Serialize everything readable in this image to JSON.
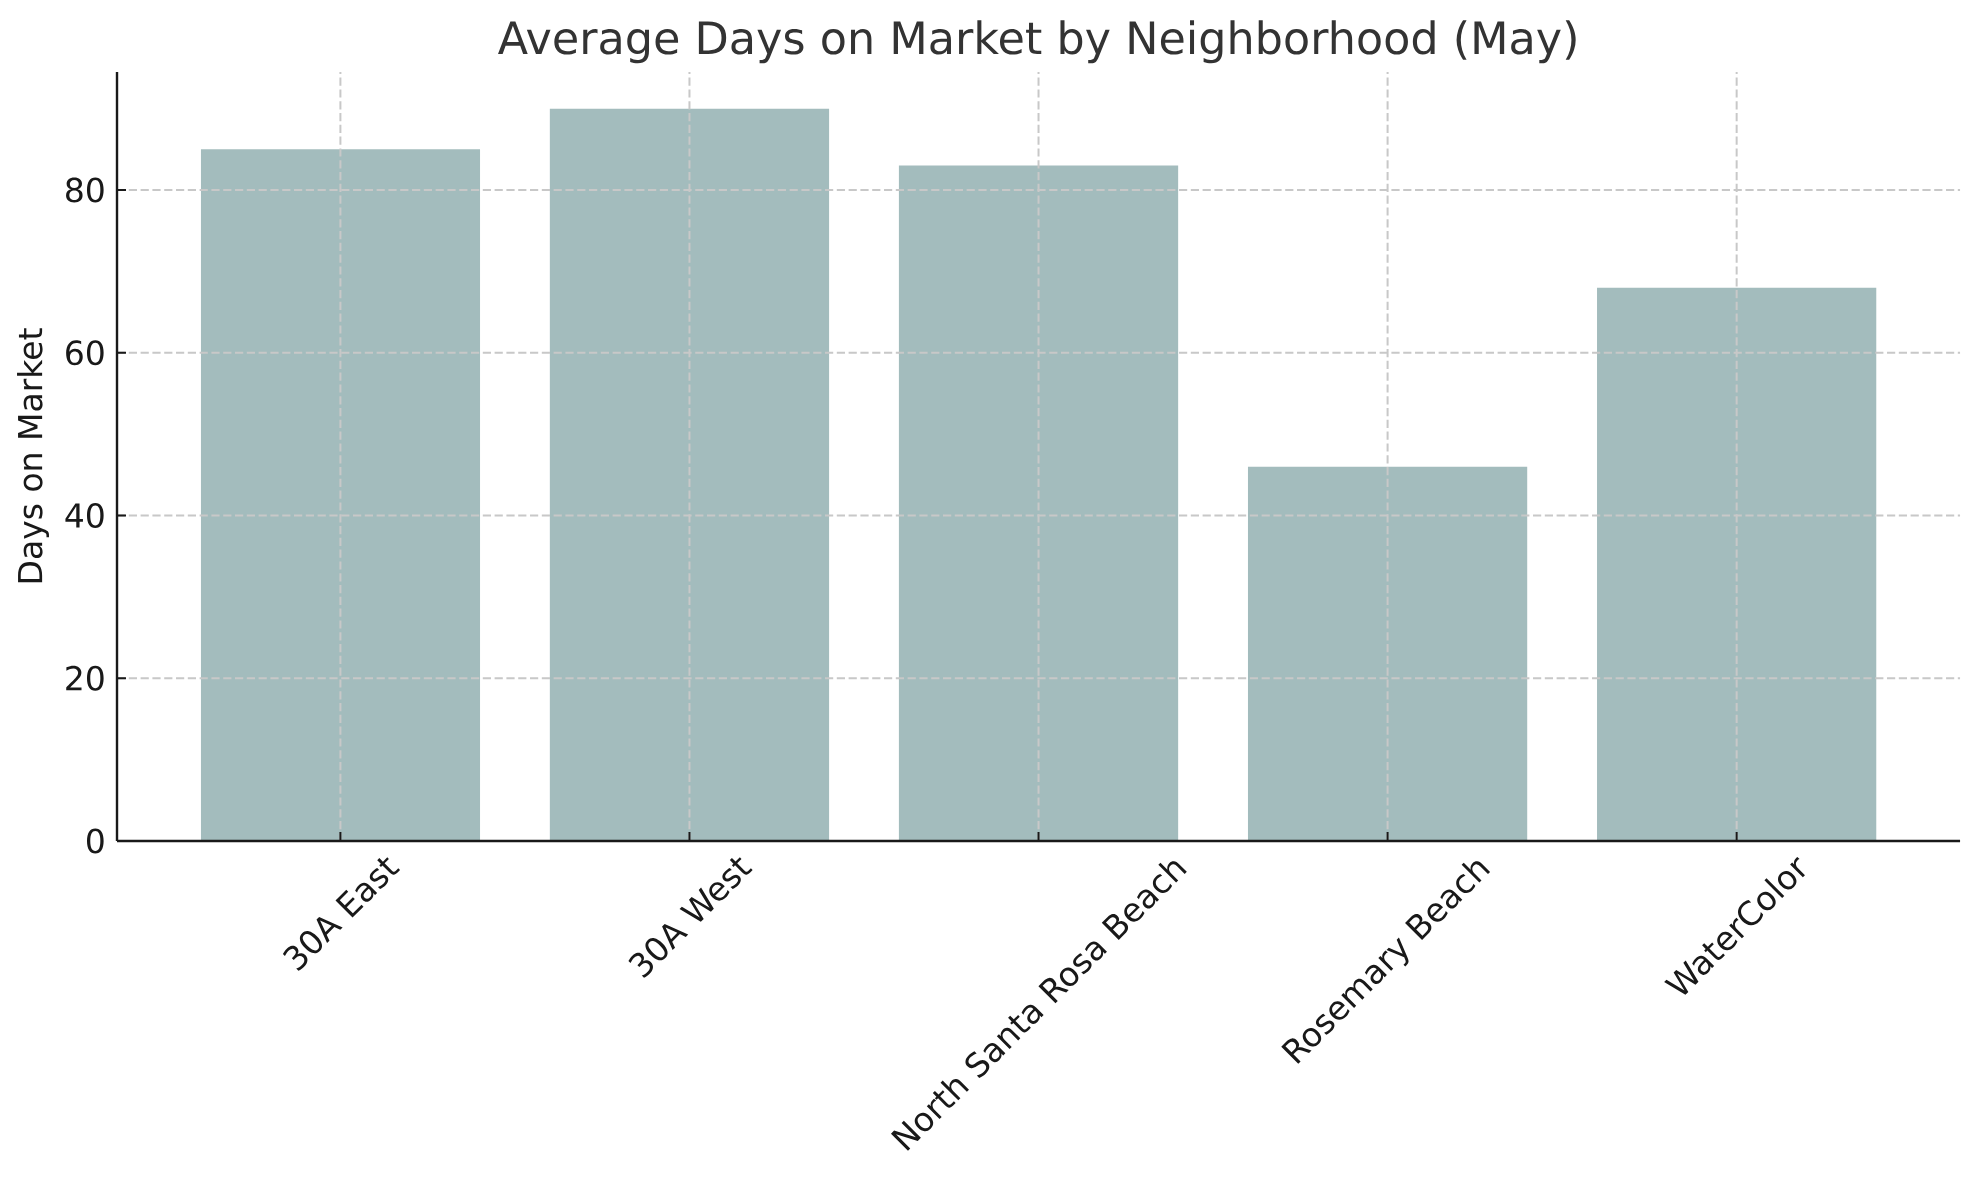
{
  "chart_data": {
    "type": "bar",
    "title": "Average Days on Market by Neighborhood (May)",
    "ylabel": "Days on Market",
    "categories": [
      "30A East",
      "30A West",
      "North Santa Rosa Beach",
      "Rosemary Beach",
      "WaterColor"
    ],
    "values": [
      85,
      90,
      83,
      46,
      68
    ],
    "color": "#a3bcbd",
    "ylim": [
      0,
      94.5
    ],
    "yticks": [
      0,
      20,
      40,
      60,
      80
    ],
    "grid": true
  }
}
